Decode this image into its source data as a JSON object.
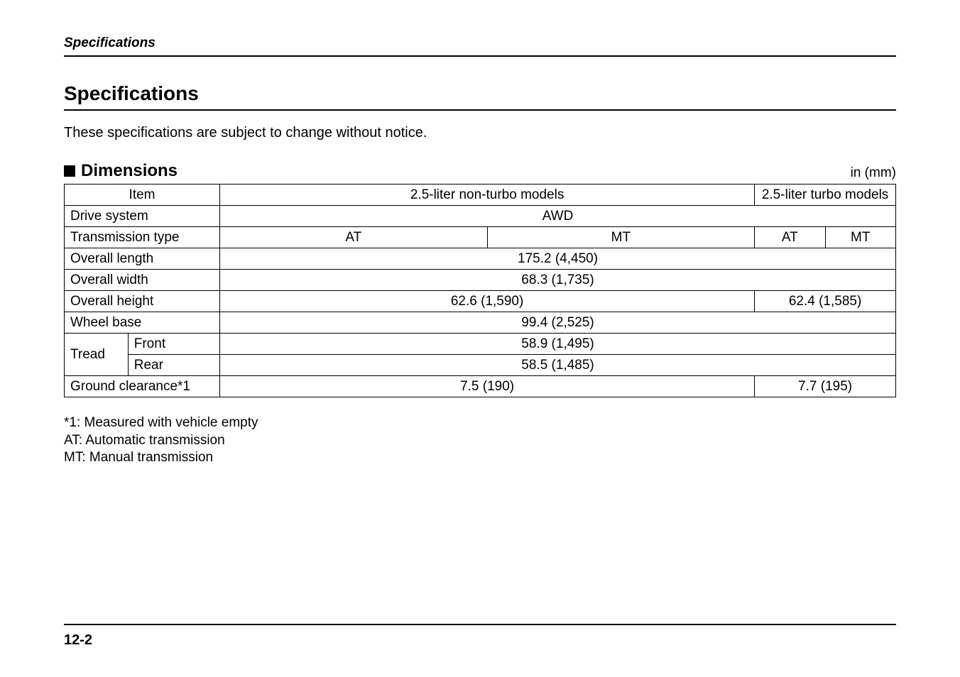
{
  "running_header": "Specifications",
  "main_heading": "Specifications",
  "intro": "These specifications are subject to change without notice.",
  "sub_heading": "Dimensions",
  "unit_label": "in (mm)",
  "table": {
    "header": {
      "item": "Item",
      "col_non_turbo": "2.5-liter non-turbo models",
      "col_turbo": "2.5-liter turbo models"
    },
    "rows": {
      "drive_system": {
        "label": "Drive system",
        "value": "AWD"
      },
      "transmission": {
        "label": "Transmission type",
        "at": "AT",
        "mt": "MT"
      },
      "overall_length": {
        "label": "Overall length",
        "value": "175.2 (4,450)"
      },
      "overall_width": {
        "label": "Overall width",
        "value": "68.3 (1,735)"
      },
      "overall_height": {
        "label": "Overall height",
        "non_turbo": "62.6 (1,590)",
        "turbo": "62.4 (1,585)"
      },
      "wheel_base": {
        "label": "Wheel base",
        "value": "99.4 (2,525)"
      },
      "tread": {
        "label": "Tread",
        "front_label": "Front",
        "front_value": "58.9 (1,495)",
        "rear_label": "Rear",
        "rear_value": "58.5 (1,485)"
      },
      "ground_clearance": {
        "label": "Ground clearance*1",
        "non_turbo": "7.5 (190)",
        "turbo": "7.7 (195)"
      }
    }
  },
  "footnotes": {
    "f1": "*1: Measured with vehicle empty",
    "f2": "AT: Automatic transmission",
    "f3": "MT: Manual transmission"
  },
  "page_number": "12-2",
  "layout": {
    "col_widths": {
      "item_a": "90px",
      "item_b": "130px",
      "nt_a": "380px",
      "nt_b": "380px",
      "turbo_a": "100px",
      "turbo_b": "100px"
    }
  }
}
